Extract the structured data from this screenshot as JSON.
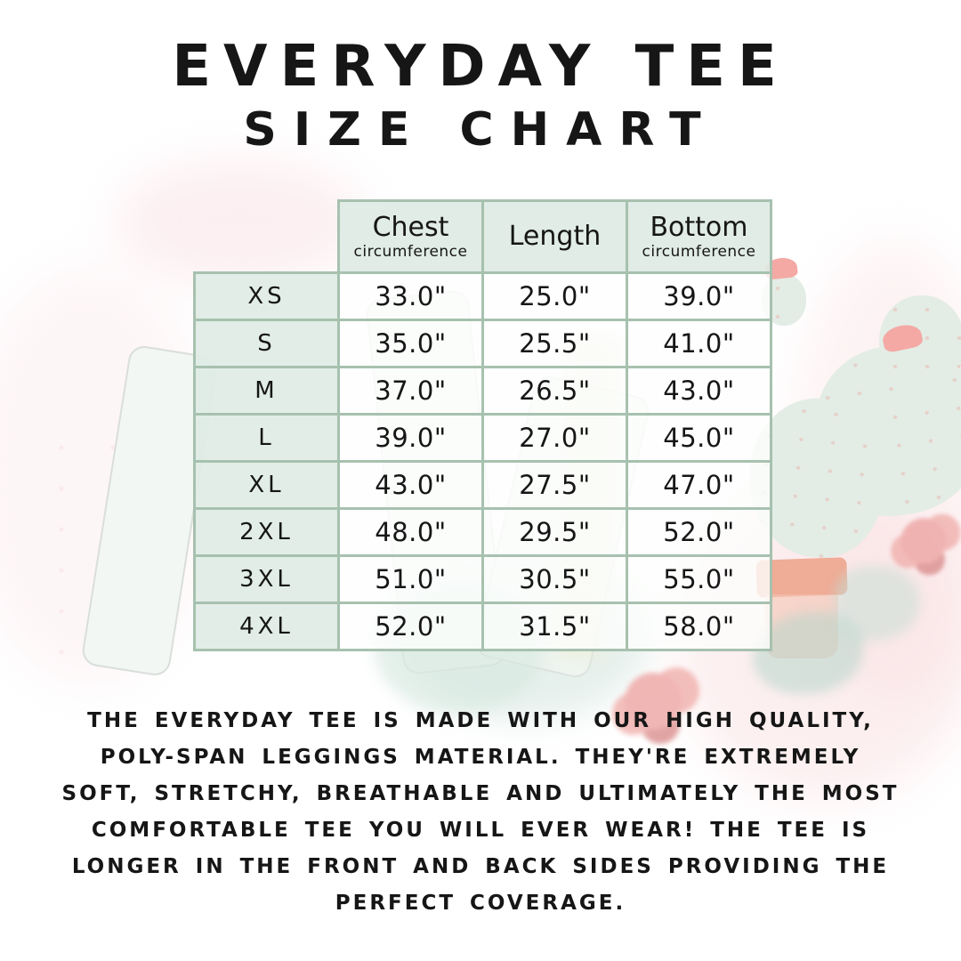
{
  "title": {
    "line1": "EVERYDAY TEE",
    "line2": "SIZE CHART"
  },
  "chart_data": {
    "type": "table",
    "title": "EVERYDAY TEE SIZE CHART",
    "columns": [
      {
        "label": "Chest",
        "sublabel": "circumference"
      },
      {
        "label": "Length",
        "sublabel": ""
      },
      {
        "label": "Bottom",
        "sublabel": "circumference"
      }
    ],
    "rows": [
      {
        "size": "XS",
        "chest": "33.0\"",
        "length": "25.0\"",
        "bottom": "39.0\""
      },
      {
        "size": "S",
        "chest": "35.0\"",
        "length": "25.5\"",
        "bottom": "41.0\""
      },
      {
        "size": "M",
        "chest": "37.0\"",
        "length": "26.5\"",
        "bottom": "43.0\""
      },
      {
        "size": "L",
        "chest": "39.0\"",
        "length": "27.0\"",
        "bottom": "45.0\""
      },
      {
        "size": "XL",
        "chest": "43.0\"",
        "length": "27.5\"",
        "bottom": "47.0\""
      },
      {
        "size": "2XL",
        "chest": "48.0\"",
        "length": "29.5\"",
        "bottom": "52.0\""
      },
      {
        "size": "3XL",
        "chest": "51.0\"",
        "length": "30.5\"",
        "bottom": "55.0\""
      },
      {
        "size": "4XL",
        "chest": "52.0\"",
        "length": "31.5\"",
        "bottom": "58.0\""
      }
    ]
  },
  "description": "THE EVERYDAY TEE IS MADE WITH OUR HIGH QUALITY, POLY-SPAN LEGGINGS MATERIAL. THEY'RE EXTREMELY SOFT, STRETCHY, BREATHABLE AND ULTIMATELY THE MOST COMFORTABLE TEE YOU WILL EVER WEAR! THE TEE IS LONGER IN THE FRONT AND BACK SIDES PROVIDING THE PERFECT COVERAGE.",
  "colors": {
    "table_border": "#a7c1af",
    "header_fill": "#deebe3",
    "data_cell_fill": "#fbfdfc",
    "text": "#161616",
    "watercolor_mint": "#e3ede6",
    "watercolor_pink": "#f4a9a5",
    "watercolor_terracotta": "#efac96"
  }
}
